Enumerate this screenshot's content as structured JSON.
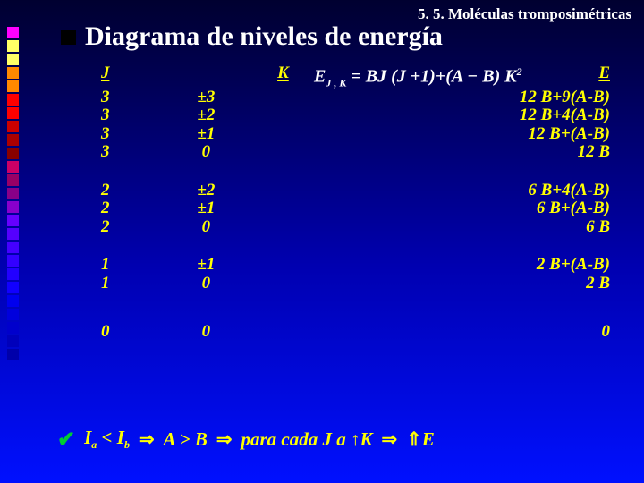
{
  "meta": {
    "topright": "5. 5. Moléculas tromposimétricas",
    "title": "Diagrama de niveles de energía",
    "formula_display": "E",
    "formula_sub": "J , K",
    "formula_rhs": " = BJ (J +1)+(A − B) K",
    "formula_sup": "2"
  },
  "palette": {
    "square_colors": [
      "#ff00ff",
      "#ffff66",
      "#ffff66",
      "#ff8800",
      "#ff8800",
      "#ff0000",
      "#ff0000",
      "#cc0000",
      "#aa0000",
      "#880000",
      "#cc0066",
      "#990066",
      "#880088",
      "#8800cc",
      "#6600ff",
      "#5500ff",
      "#4400ff",
      "#3300ff",
      "#2200ff",
      "#1100ff",
      "#0000ee",
      "#0000dd",
      "#0000cc",
      "#0000bb",
      "#0000aa"
    ]
  },
  "table": {
    "headers": {
      "J": "J",
      "K": "K",
      "E": "E"
    },
    "groups": [
      {
        "rows": [
          {
            "J": "3",
            "K": "±3",
            "E": "12 B+9(A-B)"
          },
          {
            "J": "3",
            "K": "±2",
            "E": "12 B+4(A-B)"
          },
          {
            "J": "3",
            "K": "±1",
            "E": "12 B+(A-B)"
          },
          {
            "J": "3",
            "K": "0",
            "E": "12 B"
          }
        ]
      },
      {
        "rows": [
          {
            "J": "2",
            "K": "±2",
            "E": "6 B+4(A-B)"
          },
          {
            "J": "2",
            "K": "±1",
            "E": "6 B+(A-B)"
          },
          {
            "J": "2",
            "K": "0",
            "E": "6 B"
          }
        ]
      },
      {
        "rows": [
          {
            "J": "1",
            "K": "±1",
            "E": "2 B+(A-B)"
          },
          {
            "J": "1",
            "K": "0",
            "E": "2 B"
          }
        ]
      },
      {
        "rows": [
          {
            "J": "0",
            "K": "0",
            "E": "0"
          }
        ]
      }
    ]
  },
  "footer": {
    "t1a": "I",
    "t1as": "a",
    "t1b": " < I",
    "t1bs": "b",
    "arr": " ⇒ ",
    "t2": "A > B",
    "t3a": "para cada J a ",
    "t3b": "K",
    "t4": "E",
    "up": "↑",
    "upup": "⇑"
  }
}
